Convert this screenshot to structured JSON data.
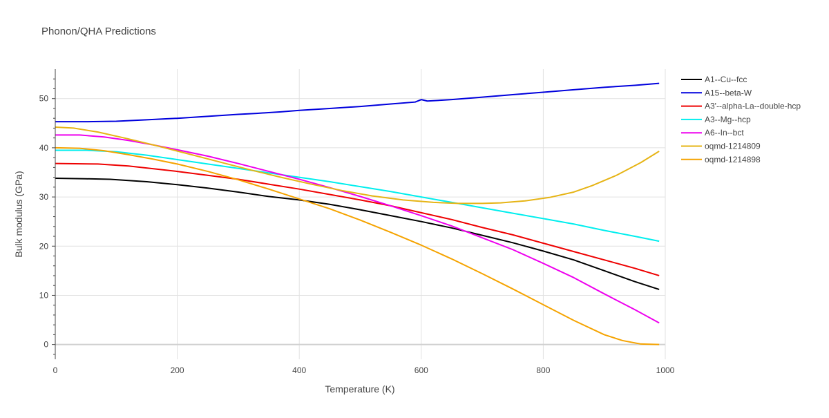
{
  "chart_data": {
    "type": "line",
    "title": "Phonon/QHA Predictions",
    "xlabel": "Temperature (K)",
    "ylabel": "Bulk modulus (GPa)",
    "xlim": [
      0,
      1000
    ],
    "ylim": [
      -3,
      56
    ],
    "xticks": [
      0,
      200,
      400,
      600,
      800,
      1000
    ],
    "yticks": [
      0,
      10,
      20,
      30,
      40,
      50
    ],
    "grid": true,
    "legend_position": "top-right",
    "series": [
      {
        "name": "A1--Cu--fcc",
        "color": "#000000",
        "x": [
          0,
          50,
          90,
          150,
          200,
          250,
          300,
          350,
          400,
          450,
          500,
          550,
          600,
          650,
          700,
          750,
          800,
          850,
          900,
          950,
          990
        ],
        "y": [
          33.8,
          33.7,
          33.6,
          33.1,
          32.5,
          31.8,
          31.0,
          30.1,
          29.4,
          28.5,
          27.4,
          26.2,
          25.0,
          23.7,
          22.2,
          20.7,
          19.0,
          17.2,
          15.0,
          12.8,
          11.2
        ]
      },
      {
        "name": "A15--beta-W",
        "color": "#0000dd",
        "x": [
          0,
          50,
          100,
          150,
          200,
          250,
          300,
          330,
          370,
          400,
          450,
          500,
          550,
          590,
          600,
          610,
          650,
          700,
          750,
          800,
          850,
          900,
          950,
          990
        ],
        "y": [
          45.3,
          45.3,
          45.4,
          45.7,
          46.0,
          46.4,
          46.8,
          47.0,
          47.3,
          47.6,
          48.0,
          48.4,
          48.9,
          49.3,
          49.8,
          49.5,
          49.8,
          50.3,
          50.8,
          51.3,
          51.8,
          52.3,
          52.7,
          53.1
        ]
      },
      {
        "name": "A3'--alpha-La--double-hcp",
        "color": "#ee0000",
        "x": [
          0,
          70,
          120,
          200,
          250,
          300,
          350,
          400,
          450,
          500,
          550,
          600,
          650,
          700,
          750,
          800,
          850,
          900,
          950,
          990
        ],
        "y": [
          36.8,
          36.7,
          36.3,
          35.2,
          34.4,
          33.6,
          32.6,
          31.6,
          30.5,
          29.4,
          28.2,
          26.8,
          25.4,
          23.8,
          22.3,
          20.6,
          18.9,
          17.2,
          15.5,
          14.0
        ]
      },
      {
        "name": "A3--Mg--hcp",
        "color": "#00eeee",
        "x": [
          0,
          50,
          100,
          150,
          200,
          250,
          300,
          350,
          400,
          450,
          500,
          550,
          600,
          650,
          700,
          750,
          800,
          850,
          900,
          950,
          990
        ],
        "y": [
          39.5,
          39.5,
          39.2,
          38.5,
          37.6,
          36.7,
          35.8,
          34.9,
          34.0,
          33.1,
          32.1,
          31.1,
          30.0,
          28.9,
          27.8,
          26.7,
          25.6,
          24.5,
          23.2,
          22.0,
          21.0
        ]
      },
      {
        "name": "A6--In--bct",
        "color": "#ee00ee",
        "x": [
          0,
          40,
          80,
          120,
          160,
          200,
          250,
          300,
          350,
          400,
          450,
          500,
          550,
          600,
          650,
          700,
          750,
          800,
          850,
          900,
          950,
          990
        ],
        "y": [
          42.6,
          42.6,
          42.2,
          41.5,
          40.6,
          39.6,
          38.3,
          36.8,
          35.2,
          33.6,
          31.9,
          30.1,
          28.2,
          26.2,
          24.1,
          21.7,
          19.3,
          16.5,
          13.6,
          10.3,
          7.1,
          4.4
        ]
      },
      {
        "name": "oqmd-1214809",
        "color": "#e6b415",
        "x": [
          0,
          30,
          70,
          120,
          170,
          220,
          270,
          320,
          370,
          420,
          470,
          520,
          570,
          620,
          660,
          700,
          730,
          770,
          810,
          850,
          880,
          920,
          960,
          990
        ],
        "y": [
          44.2,
          44.0,
          43.2,
          41.8,
          40.3,
          38.7,
          37.1,
          35.5,
          34.0,
          32.6,
          31.3,
          30.2,
          29.4,
          28.9,
          28.7,
          28.7,
          28.8,
          29.2,
          29.9,
          31.0,
          32.3,
          34.4,
          37.0,
          39.3
        ]
      },
      {
        "name": "oqmd-1214898",
        "color": "#f5a300",
        "x": [
          0,
          40,
          80,
          120,
          160,
          200,
          250,
          300,
          350,
          400,
          450,
          500,
          550,
          600,
          650,
          700,
          750,
          800,
          850,
          900,
          930,
          960,
          990
        ],
        "y": [
          40.0,
          39.9,
          39.4,
          38.6,
          37.7,
          36.7,
          35.2,
          33.5,
          31.6,
          29.6,
          27.6,
          25.3,
          22.8,
          20.2,
          17.4,
          14.4,
          11.3,
          8.1,
          4.9,
          2.0,
          0.8,
          0.1,
          0.0
        ]
      }
    ]
  }
}
